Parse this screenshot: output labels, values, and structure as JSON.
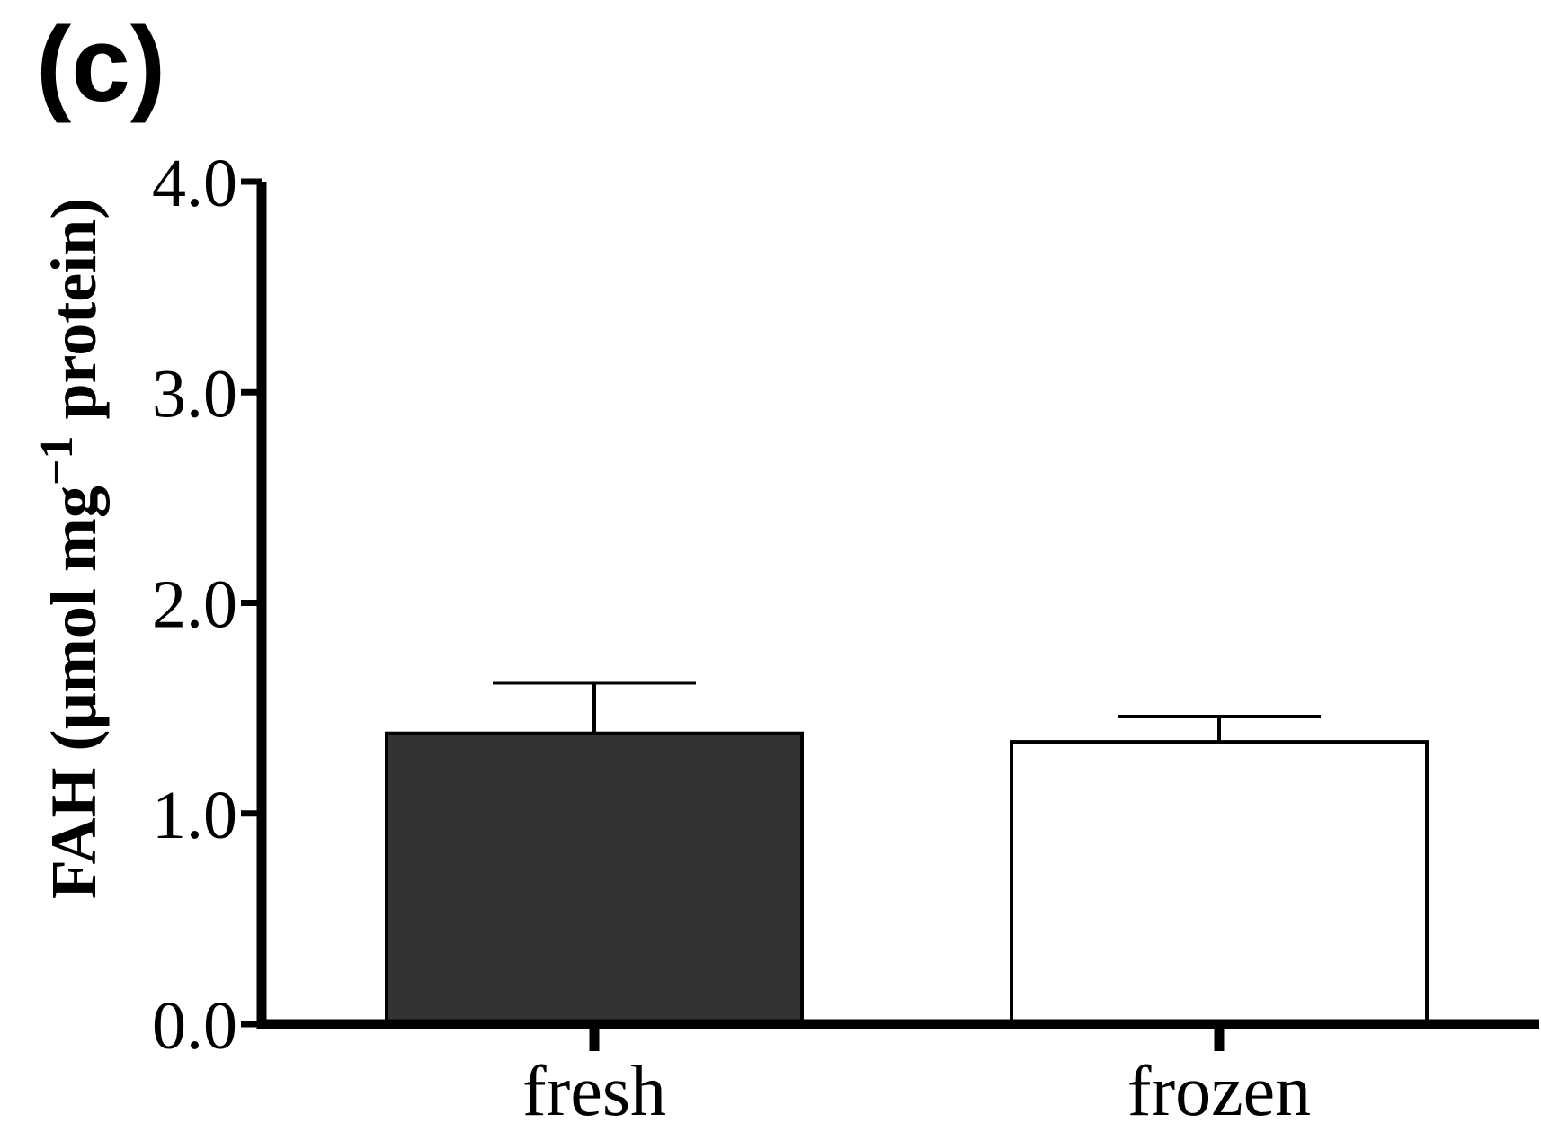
{
  "panel_label": "(c)",
  "chart_data": {
    "type": "bar",
    "title": "",
    "categories": [
      "fresh",
      "frozen"
    ],
    "values": [
      1.38,
      1.34
    ],
    "errors": [
      0.24,
      0.12
    ],
    "bar_colors": [
      "#333333",
      "#ffffff"
    ],
    "xlabel": "",
    "ylabel": {
      "main": "FAH (µmol mg",
      "superscript": "−1",
      "tail": " protein)"
    },
    "ylim": [
      0,
      4.0
    ],
    "yticks": [
      "0.0",
      "1.0",
      "2.0",
      "3.0",
      "4.0"
    ],
    "grid": false,
    "legend": "none"
  }
}
